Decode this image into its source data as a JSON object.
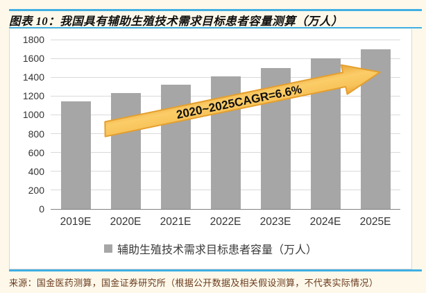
{
  "page": {
    "title": "图表 10：我国具有辅助生殖技术需求目标患者容量测算（万人）",
    "source": "来源：国金医药测算，国金证券研究所（根据公开数据及相关假设测算，不代表实际情况）"
  },
  "chart_data": {
    "type": "bar",
    "title": "我国具有辅助生殖技术需求目标患者容量测算（万人）",
    "categories": [
      "2019E",
      "2020E",
      "2021E",
      "2022E",
      "2023E",
      "2024E",
      "2025E"
    ],
    "values": [
      1140,
      1230,
      1320,
      1410,
      1500,
      1600,
      1700
    ],
    "xlabel": "",
    "ylabel": "",
    "ylim": [
      0,
      1800
    ],
    "ytick_step": 200,
    "grid": true,
    "legend_position": "bottom",
    "legend": [
      {
        "label": "辅助生殖技术需求目标患者容量（万人）",
        "color": "#A6A6A6"
      }
    ],
    "annotation": {
      "text": "2020~2025CAGR=6.6%"
    },
    "bar_color": "#A6A6A6"
  },
  "colors": {
    "accent_blue": "#3FAFE4",
    "bar_gray": "#A6A6A6",
    "gridline_gray": "#D9D9D9",
    "axis_gray": "#808080",
    "arrow_gold": "#F9C65C",
    "arrow_border": "#E49F2D",
    "source_brown": "#6B3B1E",
    "background_cream": "#FDF8EA"
  }
}
